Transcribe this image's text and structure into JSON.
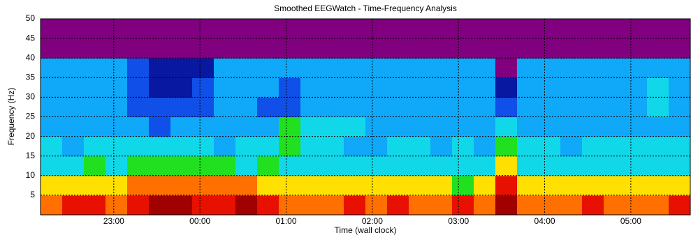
{
  "chart_data": {
    "type": "spectrogram",
    "title": "Smoothed EEGWatch  -  Time-Frequency Analysis",
    "x_label": "Time (wall clock)",
    "y_label": "Frequency (Hz)",
    "xlim": [
      22.15,
      29.69
    ],
    "xticks": [
      {
        "value": 23,
        "label": "23:00"
      },
      {
        "value": 24,
        "label": "00:00"
      },
      {
        "value": 25,
        "label": "01:00"
      },
      {
        "value": 26,
        "label": "02:00"
      },
      {
        "value": 27,
        "label": "03:00"
      },
      {
        "value": 28,
        "label": "04:00"
      },
      {
        "value": 29,
        "label": "05:00"
      }
    ],
    "ylim": [
      0,
      50
    ],
    "yticks": [
      5,
      10,
      15,
      20,
      25,
      30,
      35,
      40,
      45,
      50
    ],
    "grid": true,
    "colors": [
      "#a00000",
      "#e81000",
      "#ff7000",
      "#ffe000",
      "#20e020",
      "#10d8e8",
      "#10a8f8",
      "#1050e8",
      "#0818a0",
      "#800080"
    ],
    "z": [
      [
        2,
        1,
        1,
        2,
        1,
        0,
        0,
        1,
        1,
        0,
        1,
        2,
        2,
        2,
        1,
        2,
        1,
        2,
        2,
        1,
        2,
        0,
        2,
        2,
        2,
        1,
        2,
        2,
        2,
        1
      ],
      [
        3,
        3,
        3,
        3,
        2,
        2,
        2,
        2,
        2,
        2,
        3,
        3,
        3,
        3,
        3,
        3,
        3,
        3,
        3,
        4,
        3,
        1,
        3,
        3,
        3,
        3,
        3,
        3,
        3,
        3
      ],
      [
        5,
        5,
        4,
        5,
        4,
        4,
        4,
        4,
        4,
        5,
        4,
        5,
        5,
        5,
        5,
        5,
        5,
        5,
        5,
        5,
        5,
        3,
        5,
        5,
        5,
        5,
        5,
        5,
        5,
        5
      ],
      [
        5,
        6,
        5,
        5,
        5,
        5,
        5,
        5,
        6,
        5,
        5,
        4,
        5,
        5,
        6,
        6,
        5,
        5,
        6,
        5,
        6,
        4,
        5,
        5,
        6,
        5,
        5,
        5,
        5,
        5
      ],
      [
        6,
        6,
        6,
        6,
        6,
        7,
        6,
        6,
        6,
        6,
        6,
        4,
        5,
        5,
        5,
        6,
        6,
        6,
        6,
        6,
        6,
        5,
        6,
        6,
        6,
        6,
        6,
        6,
        6,
        6
      ],
      [
        6,
        6,
        6,
        6,
        7,
        7,
        7,
        7,
        6,
        6,
        7,
        7,
        6,
        6,
        6,
        6,
        6,
        6,
        6,
        6,
        6,
        7,
        6,
        6,
        6,
        6,
        6,
        6,
        5,
        6
      ],
      [
        6,
        6,
        6,
        6,
        7,
        8,
        8,
        7,
        6,
        6,
        6,
        7,
        6,
        6,
        6,
        6,
        6,
        6,
        6,
        6,
        6,
        8,
        6,
        6,
        6,
        6,
        6,
        6,
        5,
        6
      ],
      [
        6,
        6,
        6,
        6,
        7,
        8,
        8,
        8,
        6,
        6,
        6,
        6,
        6,
        6,
        6,
        6,
        6,
        6,
        6,
        6,
        6,
        9,
        6,
        6,
        6,
        6,
        6,
        6,
        6,
        6
      ],
      [
        9,
        9,
        9,
        9,
        9,
        9,
        9,
        9,
        9,
        9,
        9,
        9,
        9,
        9,
        9,
        9,
        9,
        9,
        9,
        9,
        9,
        9,
        9,
        9,
        9,
        9,
        9,
        9,
        9,
        9
      ],
      [
        9,
        9,
        9,
        9,
        9,
        9,
        9,
        9,
        9,
        9,
        9,
        9,
        9,
        9,
        9,
        9,
        9,
        9,
        9,
        9,
        9,
        9,
        9,
        9,
        9,
        9,
        9,
        9,
        9,
        9
      ]
    ]
  }
}
